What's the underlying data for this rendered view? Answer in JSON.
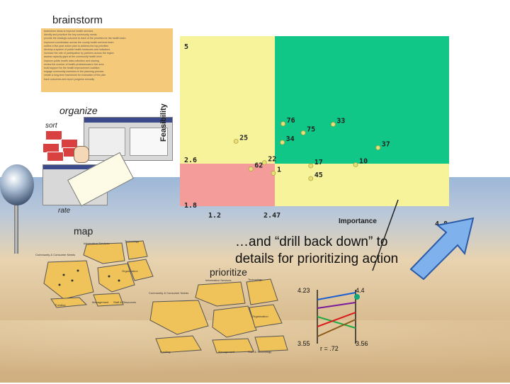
{
  "titles": {
    "brainstorm": "brainstorm",
    "organize": "organize",
    "sort": "sort",
    "rate": "rate",
    "map": "map",
    "prioritize": "prioritize"
  },
  "callout": {
    "line1": "…and “drill back down” to",
    "line2": "details for prioritizing action"
  },
  "chart_data": {
    "type": "scatter",
    "xlabel": "Importance",
    "ylabel": "Feasibility",
    "xlim": [
      1.2,
      4.8
    ],
    "ylim": [
      1.8,
      5
    ],
    "x_ticks": [
      "1.2",
      "2.47",
      "4.8"
    ],
    "y_ticks": [
      "5",
      "2.6",
      "1.8"
    ],
    "quadrant_colors": {
      "top_left": "#f7f39a",
      "top_right": "#11c787",
      "bottom_left": "#f39c9a",
      "bottom_right": "#f7f39a"
    },
    "points": [
      {
        "label": "76",
        "x": 2.58,
        "y": 3.35
      },
      {
        "label": "33",
        "x": 3.25,
        "y": 3.34
      },
      {
        "label": "75",
        "x": 2.85,
        "y": 3.18
      },
      {
        "label": "25",
        "x": 1.95,
        "y": 3.02
      },
      {
        "label": "34",
        "x": 2.57,
        "y": 3.0
      },
      {
        "label": "37",
        "x": 3.85,
        "y": 2.9
      },
      {
        "label": "22",
        "x": 2.33,
        "y": 2.62
      },
      {
        "label": "62",
        "x": 2.15,
        "y": 2.5
      },
      {
        "label": "17",
        "x": 2.95,
        "y": 2.56
      },
      {
        "label": "10",
        "x": 3.55,
        "y": 2.58
      },
      {
        "label": "1",
        "x": 2.45,
        "y": 2.42
      },
      {
        "label": "45",
        "x": 2.95,
        "y": 2.32
      }
    ]
  },
  "ladder": {
    "left_top": "4.23",
    "left_bottom": "3.55",
    "right_top": "4.4",
    "right_bottom": "3.56",
    "r_label": "r = .72"
  },
  "notes_lines": [
    "brainstorm ideas to improve health services",
    "identify and prioritize the key community needs",
    "provide the strategic outcome to each of the priorities for the health team",
    "improved coordination across the county health services team",
    "outline a five-year action plan to address the top priorities",
    "develop a system of public health measures and indicators",
    "increase the rate of participation by partners across the region",
    "assess capacity gaps at the community health level",
    "improve public health data collection and sharing",
    "review the number of health professionals in the area",
    "build support for the health improvement coalition",
    "engage community members in the planning process",
    "create a long-term framework for evaluation of the plan",
    "track outcomes and report progress annually"
  ],
  "map_labels": {
    "top_a": "Information Services",
    "top_b": "Technology",
    "left": "Community & Consumer Needs",
    "right": "Organization",
    "bottom_a": "Funding",
    "bottom_b": "Management",
    "bottom_c": "Staff & Resources",
    "p_top_a": "Information Services",
    "p_top_b": "Technology",
    "p_left": "Community & Consumer Needs",
    "p_right": "Organization",
    "p_bottom_a": "Funding",
    "p_bottom_b": "Management",
    "p_bottom_c": "Staff & Technology"
  }
}
